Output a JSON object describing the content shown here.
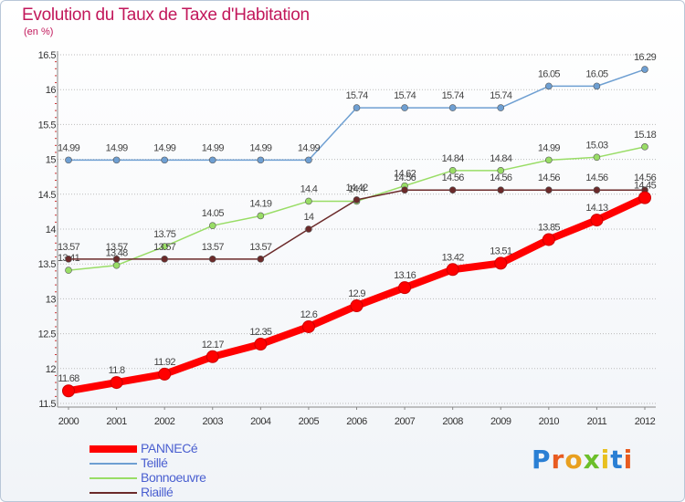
{
  "title": "Evolution du Taux de Taxe d'Habitation",
  "unit": "(en %)",
  "logo": "Proxiti",
  "chart_data": {
    "type": "line",
    "title": "Evolution du Taux de Taxe d'Habitation",
    "subtitle": "(en %)",
    "x": [
      "2000",
      "2001",
      "2002",
      "2003",
      "2004",
      "2005",
      "2006",
      "2007",
      "2008",
      "2009",
      "2010",
      "2011",
      "2012"
    ],
    "ylim": [
      11.5,
      16.5
    ],
    "yticks": [
      "11.5",
      "12",
      "12.5",
      "13",
      "13.5",
      "14",
      "14.5",
      "15",
      "15.5",
      "16",
      "16.5"
    ],
    "grid": "horizontal dotted",
    "legend": "bottom-left",
    "series": [
      {
        "name": "PANNECé",
        "color": "#ff0000",
        "values": [
          11.68,
          11.8,
          11.92,
          12.17,
          12.35,
          12.6,
          12.9,
          13.16,
          13.42,
          13.51,
          13.85,
          14.13,
          14.45
        ]
      },
      {
        "name": "Teillé",
        "color": "#6e9fd2",
        "values": [
          14.99,
          14.99,
          14.99,
          14.99,
          14.99,
          14.99,
          15.74,
          15.74,
          15.74,
          15.74,
          16.05,
          16.05,
          16.29
        ]
      },
      {
        "name": "Bonnoeuvre",
        "color": "#99dd66",
        "values": [
          13.41,
          13.48,
          13.75,
          14.05,
          14.19,
          14.4,
          14.4,
          14.62,
          14.84,
          14.84,
          14.99,
          15.03,
          15.18
        ]
      },
      {
        "name": "Riaillé",
        "color": "#6b2a2a",
        "values": [
          13.57,
          13.57,
          13.57,
          13.57,
          13.57,
          14,
          14.42,
          14.56,
          14.56,
          14.56,
          14.56,
          14.56,
          14.56
        ]
      }
    ]
  }
}
